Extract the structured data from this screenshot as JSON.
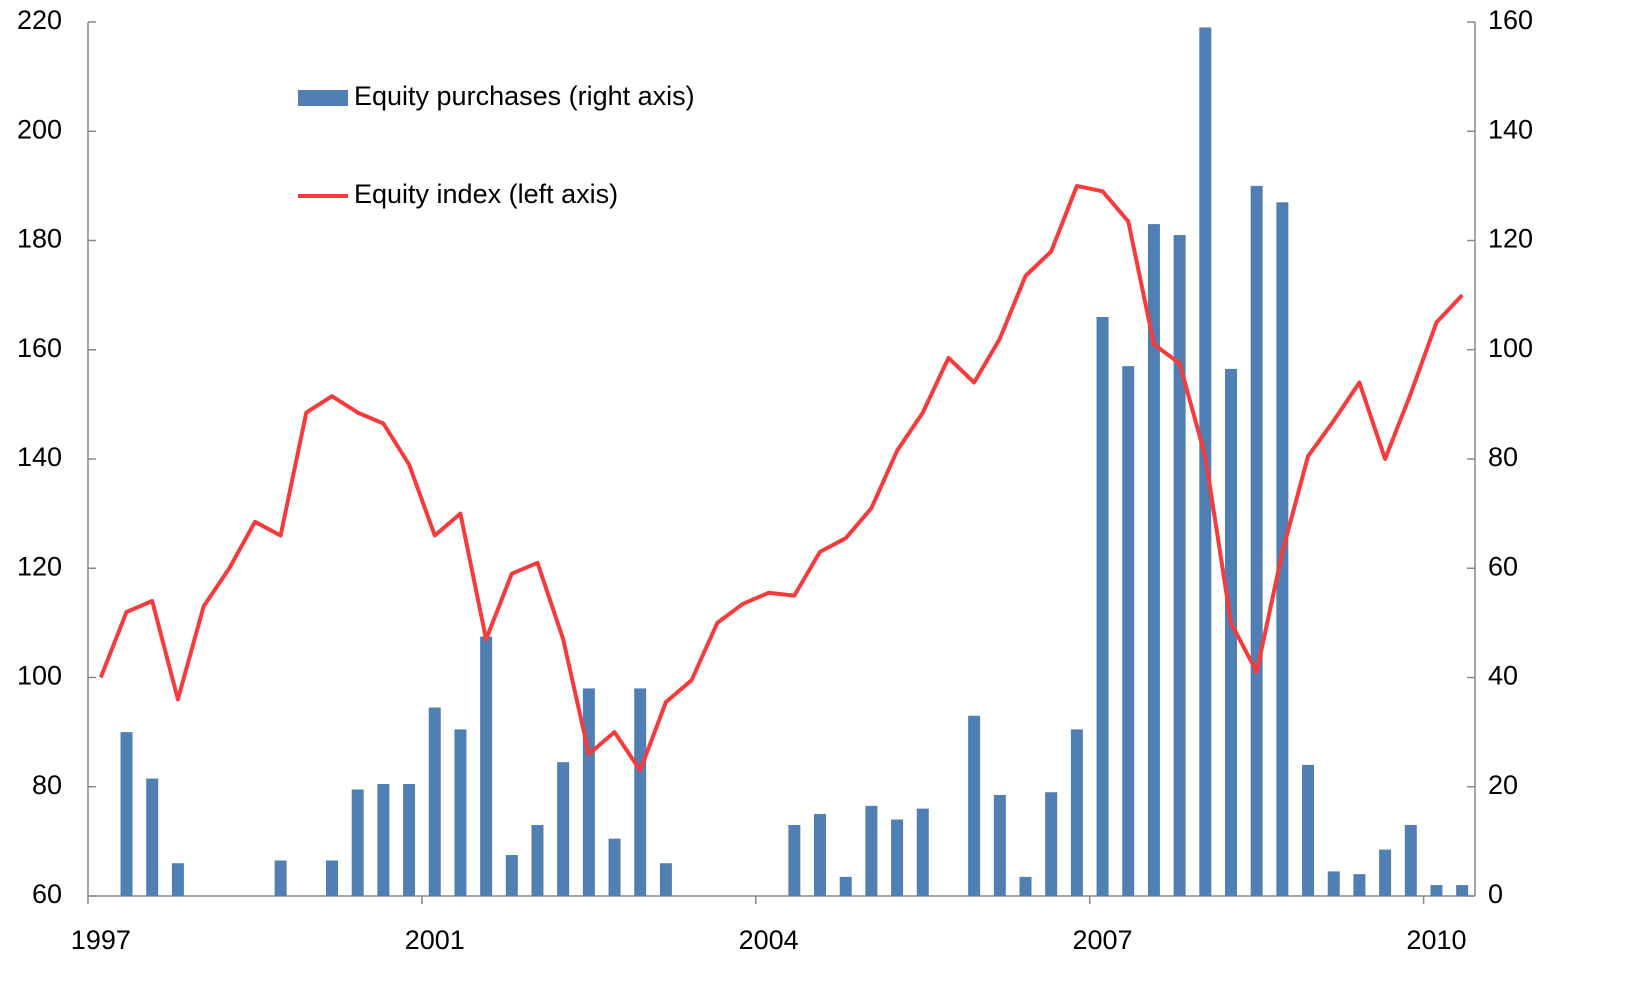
{
  "chart_data": {
    "type": "combo",
    "categories": [
      "1997",
      null,
      null,
      null,
      null,
      null,
      null,
      null,
      null,
      null,
      null,
      null,
      null,
      "2001",
      null,
      null,
      null,
      null,
      null,
      null,
      null,
      null,
      null,
      null,
      null,
      null,
      "2004",
      null,
      null,
      null,
      null,
      null,
      null,
      null,
      null,
      null,
      null,
      null,
      null,
      "2007",
      null,
      null,
      null,
      null,
      null,
      null,
      null,
      null,
      null,
      null,
      null,
      null,
      "2010",
      null
    ],
    "series": [
      {
        "name": "Equity purchases (right axis)",
        "type": "bar",
        "axis": "y2",
        "color": "#4f7fb3",
        "values": [
          0,
          30,
          21.5,
          6,
          0,
          0,
          0,
          6.5,
          0,
          6.5,
          19.5,
          20.5,
          20.5,
          34.5,
          30.5,
          47.5,
          7.5,
          13,
          24.5,
          38,
          10.5,
          38,
          6,
          0,
          0,
          0,
          0,
          13,
          15,
          3.5,
          16.5,
          14,
          16,
          0,
          33,
          18.5,
          3.5,
          19,
          30.5,
          106,
          97,
          123,
          121,
          159,
          96.5,
          130,
          127,
          24,
          4.5,
          4,
          8.5,
          13,
          2,
          2
        ]
      },
      {
        "name": "Equity index (left axis)",
        "type": "line",
        "axis": "y",
        "color": "#f53b3b",
        "values": [
          100,
          112,
          114,
          96,
          113,
          120,
          128.5,
          126,
          148.5,
          151.5,
          148.5,
          146.5,
          139,
          126,
          130,
          107,
          119,
          121,
          107,
          86,
          90,
          83,
          95.5,
          99.5,
          110,
          113.5,
          115.5,
          115,
          123,
          125.5,
          131,
          141.5,
          148.5,
          158.5,
          154,
          162,
          173.5,
          178,
          190,
          189,
          183.5,
          161,
          157.5,
          140.5,
          110,
          101,
          123,
          140.5,
          147,
          154,
          140,
          152,
          165,
          170
        ]
      }
    ],
    "ylim": [
      60,
      220
    ],
    "yticks": [
      60,
      80,
      100,
      120,
      140,
      160,
      180,
      200,
      220
    ],
    "y2lim": [
      0,
      160
    ],
    "y2ticks": [
      0,
      20,
      40,
      60,
      80,
      100,
      120,
      140,
      160
    ],
    "grid": false
  }
}
